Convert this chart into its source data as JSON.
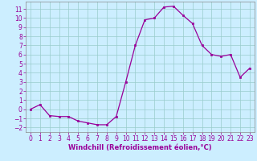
{
  "x": [
    0,
    1,
    2,
    3,
    4,
    5,
    6,
    7,
    8,
    9,
    10,
    11,
    12,
    13,
    14,
    15,
    16,
    17,
    18,
    19,
    20,
    21,
    22,
    23
  ],
  "y": [
    0,
    0.5,
    -0.7,
    -0.8,
    -0.8,
    -1.3,
    -1.5,
    -1.7,
    -1.7,
    -0.8,
    3.0,
    7.0,
    9.8,
    10.0,
    11.2,
    11.3,
    10.3,
    9.4,
    7.0,
    6.0,
    5.8,
    6.0,
    3.5,
    4.5
  ],
  "line_color": "#990099",
  "marker": "s",
  "marker_size": 2,
  "linewidth": 0.9,
  "xlabel": "Windchill (Refroidissement éolien,°C)",
  "xlabel_fontsize": 6.0,
  "bg_color": "#cceeff",
  "grid_color": "#99cccc",
  "ylim": [
    -2.5,
    11.8
  ],
  "xlim": [
    -0.5,
    23.5
  ],
  "yticks": [
    -2,
    -1,
    0,
    1,
    2,
    3,
    4,
    5,
    6,
    7,
    8,
    9,
    10,
    11
  ],
  "xticks": [
    0,
    1,
    2,
    3,
    4,
    5,
    6,
    7,
    8,
    9,
    10,
    11,
    12,
    13,
    14,
    15,
    16,
    17,
    18,
    19,
    20,
    21,
    22,
    23
  ],
  "tick_fontsize": 5.5,
  "tick_color": "#990099",
  "spine_color": "#888888"
}
